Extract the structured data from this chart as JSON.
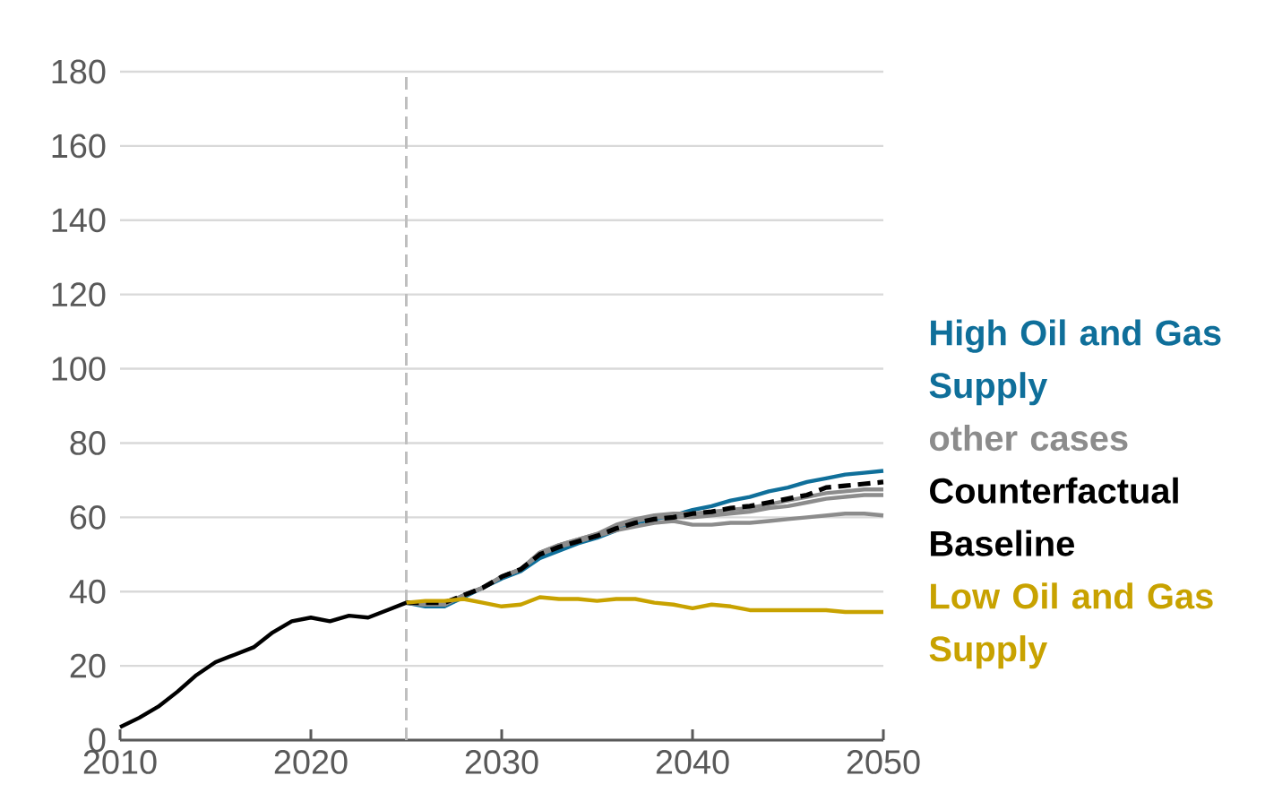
{
  "chart_data": {
    "type": "line",
    "xlim": [
      2010,
      2050
    ],
    "ylim": [
      0,
      180
    ],
    "xticks": [
      2010,
      2020,
      2030,
      2040,
      2050
    ],
    "yticks": [
      0,
      20,
      40,
      60,
      80,
      100,
      120,
      140,
      160,
      180
    ],
    "grid": "y",
    "legend": "right",
    "marker": "none",
    "ref_lines": [
      {
        "axis": "x",
        "value": 2025,
        "color": "#bfbfbf",
        "line_style": "dashed"
      }
    ],
    "series": [
      {
        "name": "High Oil and Gas Supply",
        "color": "#0f6f9a",
        "line_style": "solid",
        "x": [
          2025,
          2026,
          2027,
          2028,
          2029,
          2030,
          2031,
          2032,
          2033,
          2034,
          2035,
          2036,
          2037,
          2038,
          2039,
          2040,
          2041,
          2042,
          2043,
          2044,
          2045,
          2046,
          2047,
          2048,
          2049,
          2050
        ],
        "values": [
          37,
          36,
          36,
          38.5,
          41,
          43.5,
          45.5,
          49,
          51,
          53,
          54.5,
          56.5,
          58.5,
          59.5,
          60.5,
          62,
          63,
          64.5,
          65.5,
          67,
          68,
          69.5,
          70.5,
          71.5,
          72,
          72.5
        ]
      },
      {
        "name": "other cases",
        "color": "#8c8c8c",
        "line_style": "solid",
        "x": [
          2025,
          2026,
          2027,
          2028,
          2029,
          2030,
          2031,
          2032,
          2033,
          2034,
          2035,
          2036,
          2037,
          2038,
          2039,
          2040,
          2041,
          2042,
          2043,
          2044,
          2045,
          2046,
          2047,
          2048,
          2049,
          2050
        ],
        "values": [
          37,
          36.5,
          36.5,
          39,
          41,
          44,
          46,
          50,
          52,
          53.5,
          55,
          56.5,
          57.5,
          58.5,
          59,
          58,
          58,
          58.5,
          58.5,
          59,
          59.5,
          60,
          60.5,
          61,
          61,
          60.5
        ]
      },
      {
        "color": "#8c8c8c",
        "line_style": "solid",
        "x": [
          2025,
          2026,
          2027,
          2028,
          2029,
          2030,
          2031,
          2032,
          2033,
          2034,
          2035,
          2036,
          2037,
          2038,
          2039,
          2040,
          2041,
          2042,
          2043,
          2044,
          2045,
          2046,
          2047,
          2048,
          2049,
          2050
        ],
        "values": [
          37,
          36.5,
          36.5,
          39,
          41,
          44,
          46,
          50.5,
          52.5,
          54,
          55.5,
          57.5,
          59,
          60,
          60,
          60,
          60.5,
          61,
          61.5,
          62.5,
          63,
          64,
          65,
          65.5,
          66,
          66
        ]
      },
      {
        "color": "#8c8c8c",
        "line_style": "solid",
        "x": [
          2025,
          2026,
          2027,
          2028,
          2029,
          2030,
          2031,
          2032,
          2033,
          2034,
          2035,
          2036,
          2037,
          2038,
          2039,
          2040,
          2041,
          2042,
          2043,
          2044,
          2045,
          2046,
          2047,
          2048,
          2049,
          2050
        ],
        "values": [
          37,
          36.5,
          36.5,
          39,
          41,
          44,
          46,
          50.5,
          52.5,
          54,
          55.5,
          58,
          59.5,
          60.5,
          61,
          61,
          61.5,
          62,
          62.5,
          63.5,
          64.5,
          65.5,
          66.5,
          67,
          67.5,
          67.5
        ]
      },
      {
        "name": "Counterfactual Baseline",
        "color": "#000000",
        "line_style": "dashed",
        "x": [
          2025,
          2026,
          2027,
          2028,
          2029,
          2030,
          2031,
          2032,
          2033,
          2034,
          2035,
          2036,
          2037,
          2038,
          2039,
          2040,
          2041,
          2042,
          2043,
          2044,
          2045,
          2046,
          2047,
          2048,
          2049,
          2050
        ],
        "values": [
          37,
          37,
          37,
          39,
          41,
          44,
          46,
          50,
          52,
          53.5,
          55,
          57,
          58.5,
          59.5,
          60,
          61,
          61.5,
          62.5,
          63,
          64,
          65,
          66,
          68,
          68.5,
          69,
          69.5
        ]
      },
      {
        "name": "Low Oil and Gas Supply",
        "color": "#c8a200",
        "line_style": "solid",
        "x": [
          2025,
          2026,
          2027,
          2028,
          2029,
          2030,
          2031,
          2032,
          2033,
          2034,
          2035,
          2036,
          2037,
          2038,
          2039,
          2040,
          2041,
          2042,
          2043,
          2044,
          2045,
          2046,
          2047,
          2048,
          2049,
          2050
        ],
        "values": [
          37,
          37.5,
          37.5,
          38,
          37,
          36,
          36.5,
          38.5,
          38,
          38,
          37.5,
          38,
          38,
          37,
          36.5,
          35.5,
          36.5,
          36,
          35,
          35,
          35,
          35,
          35,
          34.5,
          34.5,
          34.5
        ]
      },
      {
        "color": "#000000",
        "line_style": "solid",
        "x": [
          2010,
          2011,
          2012,
          2013,
          2014,
          2015,
          2016,
          2017,
          2018,
          2019,
          2020,
          2021,
          2022,
          2023,
          2024,
          2025
        ],
        "values": [
          3.5,
          6,
          9,
          13,
          17.5,
          21,
          23,
          25,
          29,
          32,
          33,
          32,
          33.5,
          33,
          35,
          37
        ]
      }
    ]
  }
}
